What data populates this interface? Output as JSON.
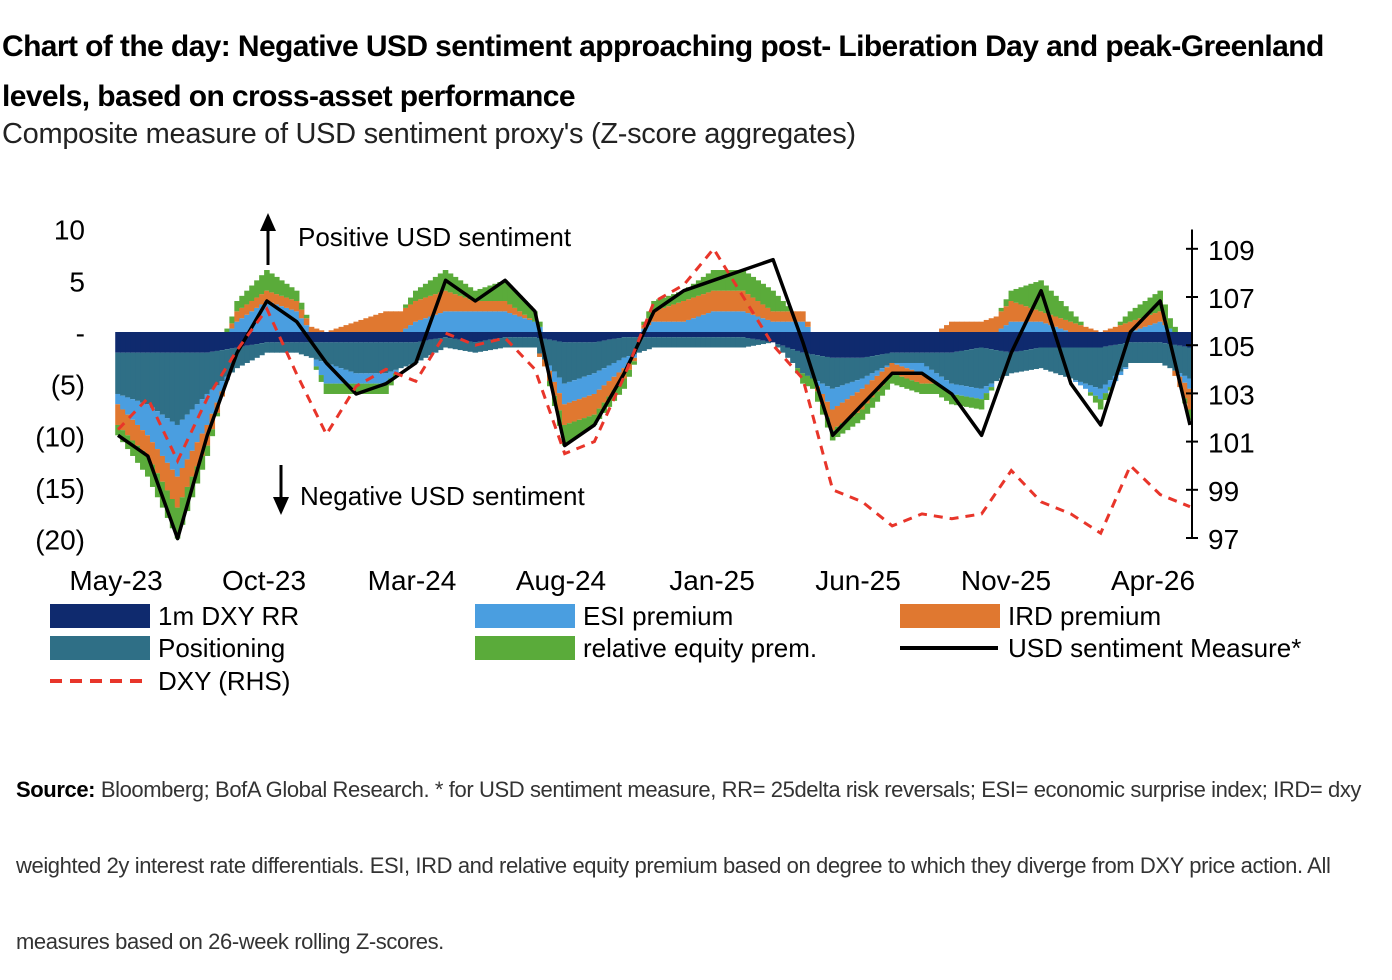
{
  "title": "Chart of the day: Negative USD sentiment approaching post- Liberation Day and peak-Greenland levels, based on cross-asset performance",
  "subtitle": "Composite measure of USD sentiment proxy's (Z-score aggregates)",
  "annotations": {
    "positive": "Positive USD sentiment",
    "negative": "Negative USD sentiment"
  },
  "source": {
    "label": "Source:",
    "text": "Bloomberg; BofA Global Research. * for USD sentiment measure, RR= 25delta risk reversals; ESI= economic surprise index; IRD= dxy weighted 2y interest rate differentials. ESI, IRD and relative equity premium based on degree to which they diverge from DXY price action. All measures based on 26-week rolling Z-scores."
  },
  "chart_data": {
    "type": "area",
    "x_tick_labels": [
      "May-23",
      "Oct-23",
      "Mar-24",
      "Aug-24",
      "Jan-25",
      "Jun-25",
      "Nov-25",
      "Apr-26"
    ],
    "y_left_tick_labels": [
      "10",
      "5",
      "-",
      "(5)",
      "(10)",
      "(15)",
      "(20)"
    ],
    "y_left_tick_values": [
      10,
      5,
      0,
      -5,
      -10,
      -15,
      -20
    ],
    "y_left_range": [
      -20,
      10
    ],
    "y_right_tick_labels": [
      "109",
      "107",
      "105",
      "103",
      "101",
      "99",
      "97"
    ],
    "y_right_tick_values": [
      109,
      107,
      105,
      103,
      101,
      99,
      97
    ],
    "y_right_range": [
      97,
      109.5
    ],
    "legend": {
      "placement": "bottom",
      "entries": [
        {
          "key": "rr",
          "label": "1m DXY RR",
          "color": "#0f2a6e",
          "style": "bar"
        },
        {
          "key": "esi",
          "label": "ESI premium",
          "color": "#4a9ee0",
          "style": "bar"
        },
        {
          "key": "ird",
          "label": "IRD premium",
          "color": "#e07830",
          "style": "bar"
        },
        {
          "key": "pos",
          "label": "Positioning",
          "color": "#2f6f86",
          "style": "bar"
        },
        {
          "key": "eq",
          "label": "relative equity prem.",
          "color": "#5aab3a",
          "style": "bar"
        },
        {
          "key": "measure",
          "label": "USD sentiment Measure*",
          "color": "#000000",
          "style": "line"
        },
        {
          "key": "dxy",
          "label": "DXY (RHS)",
          "color": "#e8352a",
          "style": "dash"
        }
      ]
    },
    "dates": [
      "2023-05",
      "2023-06",
      "2023-07",
      "2023-08",
      "2023-09",
      "2023-10",
      "2023-11",
      "2023-12",
      "2024-01",
      "2024-02",
      "2024-03",
      "2024-04",
      "2024-05",
      "2024-06",
      "2024-07",
      "2024-08",
      "2024-09",
      "2024-10",
      "2024-11",
      "2024-12",
      "2025-01",
      "2025-02",
      "2025-03",
      "2025-04",
      "2025-05",
      "2025-06",
      "2025-07",
      "2025-08",
      "2025-09",
      "2025-10",
      "2025-11",
      "2025-12",
      "2026-01",
      "2026-02",
      "2026-03",
      "2026-04",
      "2026-05"
    ],
    "series": [
      {
        "name": "USD sentiment Measure*",
        "key": "measure",
        "values": [
          -10,
          -12,
          -20,
          -10,
          -2,
          3,
          1,
          -3,
          -6,
          -5,
          -3,
          5,
          3,
          5,
          2,
          -11,
          -9,
          -4,
          2,
          4,
          5,
          6,
          7,
          -1,
          -10,
          -7,
          -4,
          -4,
          -6,
          -10,
          -2,
          4,
          -5,
          -9,
          0,
          3,
          -9
        ]
      },
      {
        "name": "DXY (RHS)",
        "key": "dxy",
        "values": [
          101.5,
          102.8,
          100.2,
          102.8,
          104.8,
          106.5,
          103.8,
          101.3,
          103.3,
          104.0,
          103.5,
          105.5,
          105.0,
          105.3,
          104.0,
          100.5,
          101.0,
          103.7,
          106.8,
          107.5,
          109.0,
          107.0,
          105.0,
          103.6,
          99.0,
          98.5,
          97.5,
          98.0,
          97.8,
          98.0,
          99.8,
          98.5,
          98.0,
          97.2,
          100.0,
          98.8,
          98.3
        ]
      },
      {
        "name": "1m DXY RR",
        "key": "rr",
        "values": [
          -2,
          -2,
          -2,
          -2,
          -1.5,
          -1,
          -1,
          -1,
          -1,
          -1,
          -1,
          -0.5,
          -1,
          -0.5,
          -0.5,
          -1,
          -1,
          -0.5,
          -0.5,
          -0.5,
          -0.5,
          -0.5,
          -1,
          -2,
          -2.5,
          -2.5,
          -2,
          -2,
          -2,
          -1.5,
          -2,
          -1.5,
          -1.5,
          -1.5,
          -1,
          -1,
          -1.5
        ]
      },
      {
        "name": "ESI premium",
        "key": "esi",
        "values": [
          -1,
          -3,
          -5,
          -3,
          1,
          3,
          2,
          -2,
          -1,
          -1,
          1,
          2,
          2,
          2,
          1,
          -2,
          -2,
          -1,
          1,
          1,
          2,
          2,
          1,
          1,
          -2,
          -1,
          0,
          -1,
          -1,
          -1,
          1,
          1,
          0,
          -1,
          0,
          1,
          -1
        ]
      },
      {
        "name": "IRD premium",
        "key": "ird",
        "values": [
          -2,
          -2,
          -3,
          -2,
          1,
          1,
          1,
          0,
          1,
          2,
          2,
          2,
          1,
          1,
          0,
          -2,
          -2,
          -1,
          1,
          2,
          2,
          2,
          1,
          1,
          -2,
          -2,
          -1,
          -1,
          1,
          1,
          2,
          1,
          1,
          0,
          1,
          1,
          -2
        ]
      },
      {
        "name": "Positioning",
        "key": "pos",
        "values": [
          -4,
          -5,
          -7,
          -4,
          -2,
          -1,
          -1,
          -2,
          -3,
          -3,
          -2,
          -1,
          -1,
          -1,
          -1,
          -4,
          -3,
          -2,
          -1,
          -1,
          -1,
          -1,
          0,
          -2,
          -3,
          -2,
          -1,
          -1,
          -3,
          -4,
          -2,
          -2,
          -3,
          -4,
          -2,
          -2,
          -3
        ]
      },
      {
        "name": "relative equity prem.",
        "key": "eq",
        "values": [
          -1,
          -2,
          -3,
          -1,
          1,
          2,
          1,
          -1,
          -1,
          -1,
          1,
          2,
          1,
          2,
          1,
          -2,
          -1,
          -1,
          1,
          1,
          2,
          2,
          2,
          -1,
          -1,
          -1,
          -1,
          -1,
          -1,
          -1,
          1,
          3,
          1,
          -1,
          1,
          2,
          -1
        ]
      }
    ]
  }
}
